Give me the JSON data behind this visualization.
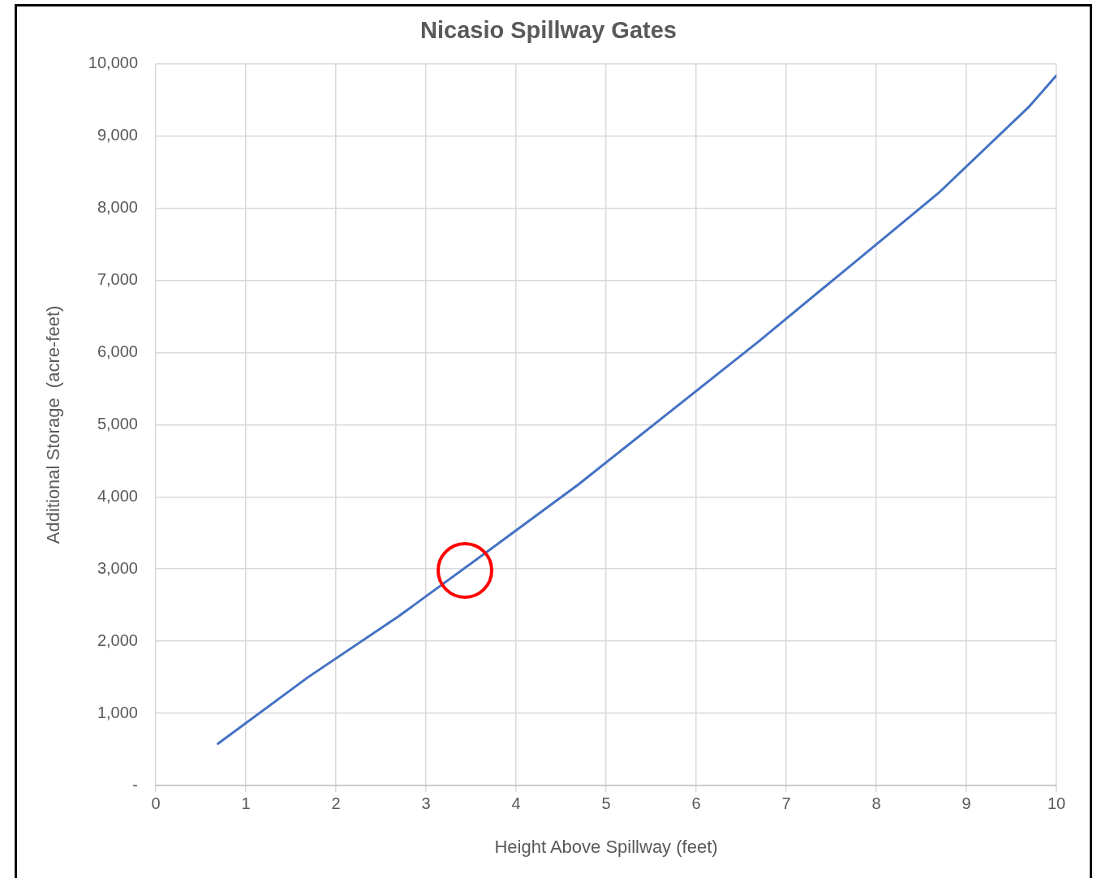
{
  "chart_data": {
    "type": "line",
    "title": "Nicasio Spillway Gates",
    "xlabel": "Height Above Spillway (feet)",
    "ylabel": "Additional Storage  (acre-feet)",
    "x": [
      0.69,
      1.69,
      2.69,
      3.69,
      4.69,
      5.69,
      6.69,
      7.69,
      8.69,
      9.69,
      10
    ],
    "series": [
      {
        "color": "#4472c4",
        "values": [
          580,
          1500,
          2340,
          3250,
          4170,
          5160,
          6150,
          7180,
          8210,
          9400,
          9840
        ]
      }
    ],
    "xlim": [
      0,
      10
    ],
    "xticks": [
      0,
      1,
      2,
      3,
      4,
      5,
      6,
      7,
      8,
      9,
      10
    ],
    "ylim": [
      0,
      10000
    ],
    "yticks": [
      {
        "value": 0,
        "label": "-"
      },
      {
        "value": 1000,
        "label": "1,000"
      },
      {
        "value": 2000,
        "label": "2,000"
      },
      {
        "value": 3000,
        "label": "3,000"
      },
      {
        "value": 4000,
        "label": "4,000"
      },
      {
        "value": 5000,
        "label": "5,000"
      },
      {
        "value": 6000,
        "label": "6,000"
      },
      {
        "value": 7000,
        "label": "7,000"
      },
      {
        "value": 8000,
        "label": "8,000"
      },
      {
        "value": 9000,
        "label": "9,000"
      },
      {
        "value": 10000,
        "label": "10,000"
      }
    ],
    "grid": true,
    "marker": "none",
    "line_style": "solid"
  }
}
